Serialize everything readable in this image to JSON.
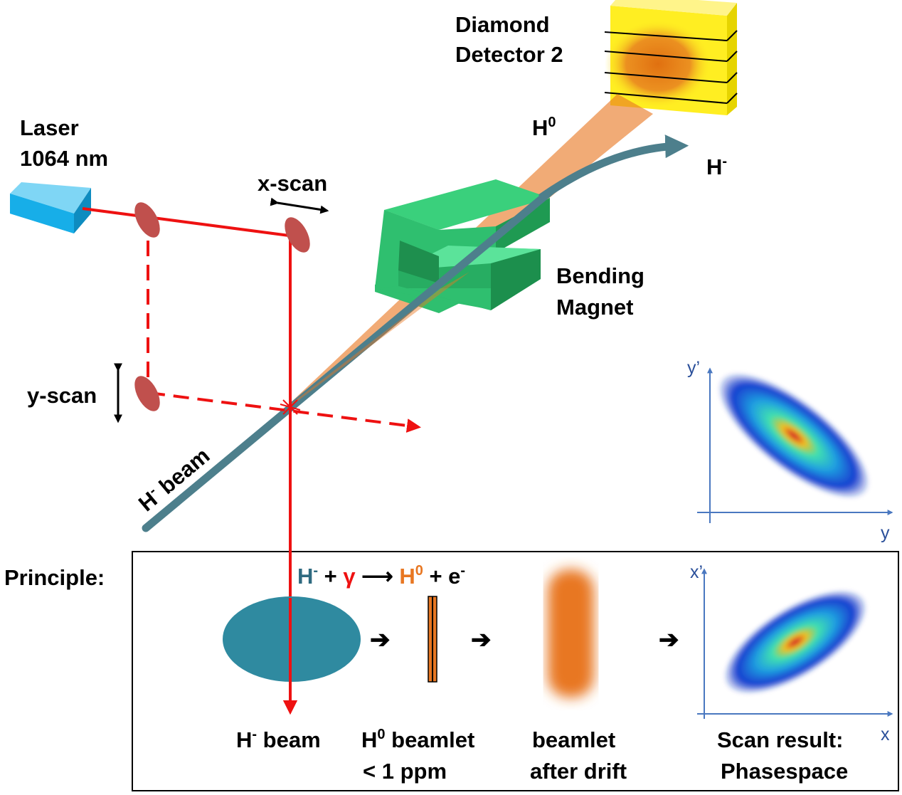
{
  "labels": {
    "detector_line1": "Diamond",
    "detector_line2": "Detector 2",
    "laser_line1": "Laser",
    "laser_line2": "1064 nm",
    "x_scan": "x-scan",
    "y_scan": "y-scan",
    "h0_top_main": "H",
    "h0_top_sup": "0",
    "hminus_top_main": "H",
    "hminus_top_sup": "-",
    "magnet_line1": "Bending",
    "magnet_line2": "Magnet",
    "hbeam_main": "H",
    "hbeam_sup": "-",
    "hbeam_rest": " beam",
    "principle": "Principle:"
  },
  "reaction": {
    "hminus": "H",
    "hminus_sup": "-",
    "plus1": " + ",
    "gamma": "γ",
    "arrow": " ⟶ ",
    "h0": "H",
    "h0_sup": "0",
    "plus2": " + e",
    "e_sup": "-"
  },
  "principle_steps": {
    "step1_main": "H",
    "step1_sup": "-",
    "step1_rest": " beam",
    "step2_line1_main": "H",
    "step2_line1_sup": "0",
    "step2_line1_rest": " beamlet",
    "step2_line2": "< 1 ppm",
    "step3_line1": "beamlet",
    "step3_line2": "after drift",
    "step4_line1": "Scan result:",
    "step4_line2": "Phasespace"
  },
  "plots": {
    "top_ylabel": "y’",
    "top_xlabel": "y",
    "bottom_ylabel": "x’",
    "bottom_xlabel": "x"
  },
  "colors": {
    "laser_red": "#ee1111",
    "hminus_beam": "#2f8aa0",
    "h0_orange": "#e87722",
    "magnet_green": "#2fbf6f",
    "detector_yellow": "#ffee22",
    "axis_blue": "#4a78c0",
    "mirror": "#c0504d"
  }
}
